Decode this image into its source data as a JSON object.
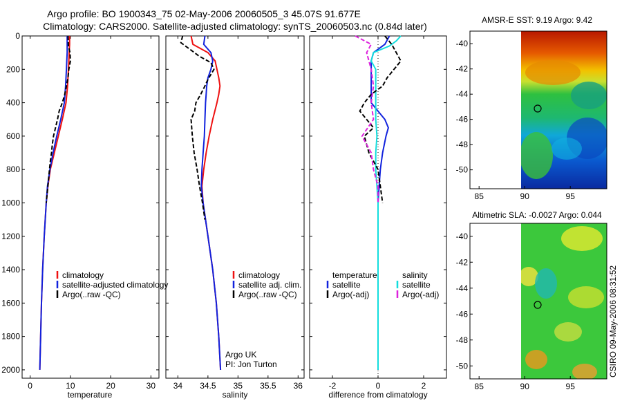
{
  "title_line1": "Argo profile: BO 1900343_75 02-May-2006 20060505_3 45.07S 91.677E",
  "title_line2": "Climatology: CARS2000. Satellite-adjusted climatology: synTS_20060503.nc (0.84d later)",
  "side_stamp": "CSIRO 09-May-2006 08:31:52",
  "colors": {
    "climatology": "#ee1111",
    "satellite": "#1122dd",
    "argo": "#000000",
    "satellite_diff": "#11dddd",
    "argo_salinity_diff": "#dd22dd"
  },
  "chart_data": [
    {
      "type": "line",
      "id": "temperature",
      "xlabel": "temperature",
      "xlim": [
        -2,
        32
      ],
      "ylim": [
        2050,
        0
      ],
      "xticks": [
        0,
        10,
        20,
        30
      ],
      "yticks": [
        0,
        200,
        400,
        600,
        800,
        1000,
        1200,
        1400,
        1600,
        1800,
        2000
      ],
      "legend": [
        "climatology",
        "satellite-adjusted climatology",
        "Argo(..raw -QC)"
      ],
      "series": [
        {
          "name": "climatology",
          "color": "#ee1111",
          "dash": "",
          "depth": [
            0,
            50,
            100,
            150,
            200,
            300,
            400,
            500,
            600,
            700,
            800,
            900,
            1000,
            1200,
            1400,
            1600,
            1800,
            2000
          ],
          "values": [
            9.8,
            9.8,
            9.7,
            9.6,
            9.5,
            9.3,
            8.9,
            8.0,
            7.0,
            6.0,
            5.0,
            4.4,
            4.0,
            3.5,
            3.1,
            2.8,
            2.6,
            2.4
          ]
        },
        {
          "name": "satellite-adjusted climatology",
          "color": "#1122dd",
          "dash": "",
          "depth": [
            0,
            50,
            100,
            150,
            200,
            300,
            400,
            500,
            600,
            700,
            800,
            900,
            1000,
            1200,
            1400,
            1600,
            1800,
            2000
          ],
          "values": [
            9.2,
            9.2,
            9.2,
            9.1,
            9.0,
            8.8,
            8.5,
            7.6,
            6.6,
            5.7,
            4.9,
            4.3,
            4.0,
            3.5,
            3.1,
            2.8,
            2.6,
            2.4
          ]
        },
        {
          "name": "Argo(..raw -QC)",
          "color": "#000000",
          "dash": "6 3",
          "depth": [
            0,
            60,
            100,
            150,
            200,
            250,
            300,
            350,
            400,
            450,
            500,
            550,
            600,
            650,
            700,
            750,
            800,
            850,
            900,
            1000
          ],
          "values": [
            9.4,
            9.5,
            9.9,
            10.0,
            9.6,
            9.4,
            9.0,
            8.6,
            8.0,
            7.2,
            6.8,
            6.3,
            5.8,
            5.5,
            5.3,
            5.0,
            4.8,
            4.6,
            4.4,
            4.0
          ]
        }
      ]
    },
    {
      "type": "line",
      "id": "salinity",
      "xlabel": "salinity",
      "xlim": [
        33.8,
        36.1
      ],
      "ylim": [
        2050,
        0
      ],
      "xticks": [
        34,
        34.5,
        35,
        35.5,
        36
      ],
      "legend": [
        "climatology",
        "satellite adj. clim.",
        "Argo(..raw -QC)"
      ],
      "annotation": [
        "Argo UK",
        "PI: Jon Turton"
      ],
      "series": [
        {
          "name": "climatology",
          "color": "#ee1111",
          "dash": "",
          "depth": [
            0,
            50,
            100,
            150,
            200,
            250,
            300,
            350,
            400,
            500,
            600,
            700,
            800,
            900,
            1000,
            1200,
            1400,
            1600,
            1800,
            2000
          ],
          "values": [
            34.22,
            34.25,
            34.5,
            34.62,
            34.65,
            34.68,
            34.7,
            34.68,
            34.65,
            34.58,
            34.52,
            34.47,
            34.43,
            34.4,
            34.42,
            34.5,
            34.58,
            34.64,
            34.68,
            34.71
          ]
        },
        {
          "name": "satellite adj. clim.",
          "color": "#1122dd",
          "dash": "",
          "depth": [
            0,
            50,
            100,
            150,
            200,
            250,
            300,
            350,
            400,
            500,
            600,
            700,
            800,
            900,
            1000,
            1200,
            1400,
            1600,
            1800,
            2000
          ],
          "values": [
            34.45,
            34.43,
            34.55,
            34.58,
            34.55,
            34.5,
            34.48,
            34.47,
            34.46,
            34.45,
            34.44,
            34.42,
            34.4,
            34.39,
            34.42,
            34.5,
            34.58,
            34.64,
            34.68,
            34.71
          ]
        },
        {
          "name": "Argo(..raw -QC)",
          "color": "#000000",
          "dash": "6 3",
          "depth": [
            0,
            40,
            80,
            120,
            160,
            200,
            260,
            300,
            350,
            400,
            450,
            500,
            600,
            700,
            800,
            900,
            1000,
            1100
          ],
          "values": [
            34.08,
            34.05,
            34.2,
            34.35,
            34.55,
            34.6,
            34.5,
            34.45,
            34.38,
            34.3,
            34.28,
            34.22,
            34.24,
            34.27,
            34.32,
            34.36,
            34.41,
            34.45
          ]
        }
      ]
    },
    {
      "type": "line",
      "id": "difference",
      "xlabel": "difference from climatology",
      "xlim": [
        -3,
        3
      ],
      "ylim": [
        2050,
        0
      ],
      "xticks": [
        -2,
        0,
        2
      ],
      "legend_temperature": [
        "temperature",
        "satellite",
        "Argo(-adj)"
      ],
      "legend_salinity": [
        "salinity",
        "satellite",
        "Argo(-adj)"
      ],
      "series": [
        {
          "name": "temperature satellite",
          "color": "#1122dd",
          "dash": "",
          "depth": [
            0,
            50,
            100,
            150,
            200,
            300,
            400,
            450,
            500,
            550,
            600,
            700,
            800,
            900,
            1000,
            1200,
            1600,
            2000
          ],
          "values": [
            0.5,
            0.3,
            -0.2,
            -0.3,
            -0.3,
            -0.3,
            -0.3,
            0.0,
            0.3,
            0.45,
            0.35,
            0.2,
            0.1,
            0.05,
            0.0,
            0.0,
            0.0,
            0.0
          ]
        },
        {
          "name": "salinity satellite",
          "color": "#11dddd",
          "dash": "",
          "depth": [
            0,
            30,
            60,
            100,
            150,
            200,
            300,
            400,
            500,
            600,
            700,
            800,
            900,
            1000,
            1100,
            1200,
            1600,
            2000
          ],
          "values": [
            1.0,
            0.8,
            0.5,
            -0.2,
            -0.3,
            -0.1,
            -0.1,
            -0.1,
            -0.1,
            -0.05,
            -0.1,
            -0.1,
            -0.05,
            0.0,
            0.0,
            0.0,
            0.0,
            0.0
          ]
        },
        {
          "name": "temperature Argo(-adj)",
          "color": "#000000",
          "dash": "6 3",
          "depth": [
            0,
            50,
            100,
            150,
            200,
            250,
            300,
            350,
            400,
            450,
            500,
            550,
            600,
            700,
            800,
            900,
            1000
          ],
          "values": [
            0.3,
            0.6,
            0.8,
            1.0,
            0.7,
            0.4,
            0.2,
            -0.3,
            -0.6,
            -0.8,
            -0.5,
            -0.2,
            -0.6,
            -0.4,
            0.0,
            0.1,
            0.2
          ]
        },
        {
          "name": "salinity Argo(-adj)",
          "color": "#dd22dd",
          "dash": "6 3",
          "depth": [
            0,
            50,
            100,
            150,
            200,
            300,
            400,
            500,
            600,
            700,
            800,
            900,
            1000
          ],
          "values": [
            -1.0,
            -0.3,
            -0.5,
            -0.4,
            -0.3,
            -0.2,
            -0.3,
            -0.2,
            -0.7,
            -0.3,
            -0.2,
            0.0,
            0.0
          ]
        }
      ]
    },
    {
      "type": "heatmap",
      "id": "sst-map",
      "title": "AMSR-E SST: 9.19 Argo: 9.42",
      "xlim": [
        84,
        99
      ],
      "ylim": [
        -51.5,
        -39
      ],
      "xticks": [
        85,
        90,
        95
      ],
      "yticks": [
        -40,
        -42,
        -44,
        -46,
        -48,
        -50
      ],
      "data_extent": [
        90,
        99
      ],
      "marker": {
        "lon": 91.677,
        "lat": -45.07
      }
    },
    {
      "type": "heatmap",
      "id": "sla-map",
      "title": "Altimetric SLA: -0.0027 Argo: 0.044",
      "xlim": [
        84,
        99
      ],
      "ylim": [
        -51,
        -39
      ],
      "xticks": [
        85,
        90,
        95
      ],
      "yticks": [
        -40,
        -42,
        -44,
        -46,
        -48,
        -50
      ],
      "data_extent": [
        90,
        99
      ],
      "marker": {
        "lon": 91.677,
        "lat": -45.07
      }
    }
  ]
}
